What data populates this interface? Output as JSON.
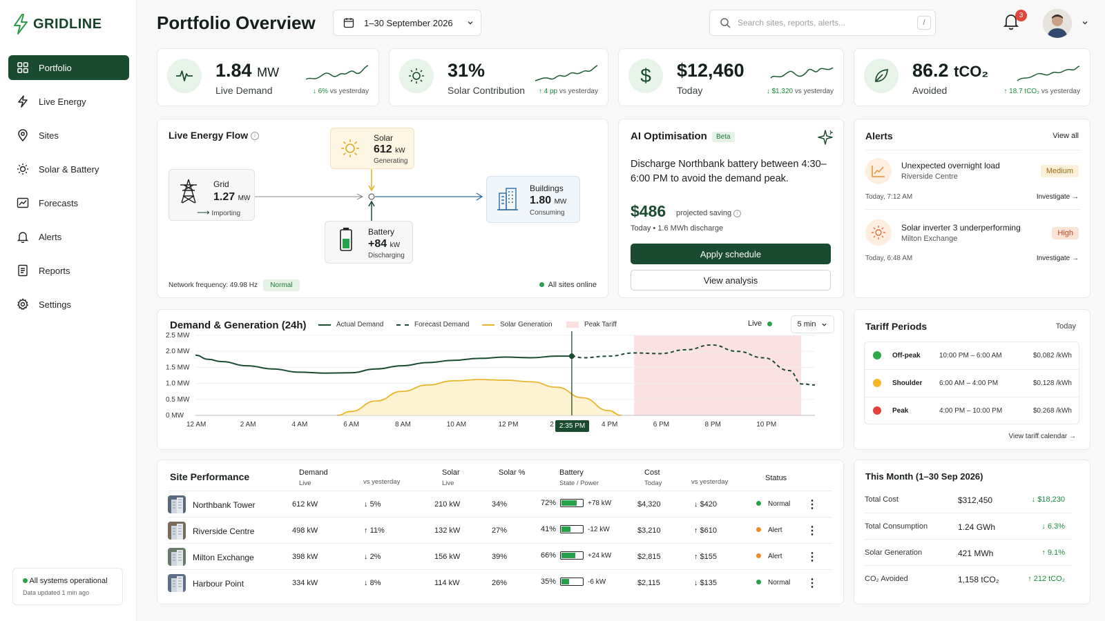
{
  "app": {
    "name": "GRIDLINE"
  },
  "sidebar": {
    "items": [
      {
        "label": "Portfolio",
        "icon": "grid-icon"
      },
      {
        "label": "Live Energy",
        "icon": "bolt-icon"
      },
      {
        "label": "Sites",
        "icon": "pin-icon"
      },
      {
        "label": "Solar & Battery",
        "icon": "sun-icon"
      },
      {
        "label": "Forecasts",
        "icon": "chart-icon"
      },
      {
        "label": "Alerts",
        "icon": "bell-icon"
      },
      {
        "label": "Reports",
        "icon": "document-icon"
      },
      {
        "label": "Settings",
        "icon": "gear-icon"
      }
    ],
    "status": {
      "text": "All systems operational",
      "updated": "Data updated 1 min ago"
    }
  },
  "header": {
    "title": "Portfolio Overview",
    "date_range": "1–30 September 2026",
    "search_placeholder": "Search sites, reports, alerts...",
    "search_shortcut": "/",
    "notifications": "3"
  },
  "kpis": [
    {
      "value": "1.84",
      "unit": "MW",
      "label": "Live Demand",
      "arrow": "↓",
      "delta": "6%",
      "delta_suffix": "vs yesterday"
    },
    {
      "value": "31%",
      "unit": "",
      "label": "Solar Contribution",
      "arrow": "↑",
      "delta": "4 pp",
      "delta_suffix": "vs yesterday"
    },
    {
      "value": "$12,460",
      "unit": "",
      "label": "Today",
      "arrow": "↓",
      "delta": "$1,320",
      "delta_suffix": "vs yesterday"
    },
    {
      "value": "86.2",
      "unit": "tCO₂",
      "label": "Avoided",
      "arrow": "↑",
      "delta": "18.7 tCO₂",
      "delta_suffix": "vs yesterday"
    }
  ],
  "energy_flow": {
    "title": "Live Energy Flow",
    "grid": {
      "title": "Grid",
      "value": "1.27",
      "unit": "MW",
      "status": "Importing"
    },
    "solar": {
      "title": "Solar",
      "value": "612",
      "unit": "kW",
      "status": "Generating"
    },
    "buildings": {
      "title": "Buildings",
      "value": "1.80",
      "unit": "MW",
      "status": "Consuming"
    },
    "battery": {
      "title": "Battery",
      "value": "+84",
      "unit": "kW",
      "status": "Discharging"
    },
    "frequency": "Network frequency: 49.98 Hz",
    "frequency_status": "Normal",
    "sites_status": "All sites online"
  },
  "ai": {
    "title": "AI Optimisation",
    "badge": "Beta",
    "message": "Discharge Northbank battery between 4:30–6:00 PM to avoid the demand peak.",
    "saving": "$486",
    "saving_label": "projected saving",
    "detail": "Today  •  1.6 MWh discharge",
    "apply": "Apply schedule",
    "view": "View analysis"
  },
  "alerts": {
    "title": "Alerts",
    "view_all": "View all",
    "items": [
      {
        "title": "Unexpected overnight load",
        "site": "Riverside Centre",
        "severity": "Medium",
        "time": "Today, 7:12 AM",
        "action": "Investigate →"
      },
      {
        "title": "Solar inverter 3 underperforming",
        "site": "Milton Exchange",
        "severity": "High",
        "time": "Today, 6:48 AM",
        "action": "Investigate →"
      }
    ]
  },
  "chart": {
    "title": "Demand & Generation (24h)",
    "live": "Live",
    "interval": "5 min",
    "cursor_label": "2:35 PM"
  },
  "chart_data": {
    "type": "line",
    "title": "Demand & Generation (24h)",
    "x_ticks": [
      "12 AM",
      "2 AM",
      "4 AM",
      "6 AM",
      "8 AM",
      "10 AM",
      "12 PM",
      "2 PM",
      "4 PM",
      "6 PM",
      "8 PM",
      "10 PM"
    ],
    "y_ticks": [
      "0 MW",
      "0.5 MW",
      "1.0 MW",
      "1.5 MW",
      "2.0 MW",
      "2.5 MW"
    ],
    "ylim": [
      0,
      2.5
    ],
    "xlim": [
      0,
      24
    ],
    "legend": [
      "Actual Demand",
      "Forecast Demand",
      "Solar Generation",
      "Peak Tariff"
    ],
    "peak_band": [
      17,
      24
    ],
    "cursor_hour": 14.58,
    "series": [
      {
        "name": "Actual Demand",
        "color": "#1a4a2f",
        "style": "solid",
        "x": [
          0,
          0.5,
          1,
          2,
          3,
          4,
          5,
          6,
          7,
          8,
          9,
          10,
          11,
          12,
          13,
          14,
          14.58
        ],
        "y": [
          1.88,
          1.75,
          1.68,
          1.55,
          1.45,
          1.35,
          1.32,
          1.33,
          1.45,
          1.55,
          1.65,
          1.72,
          1.78,
          1.82,
          1.8,
          1.85,
          1.85
        ]
      },
      {
        "name": "Forecast Demand",
        "color": "#1a4a2f",
        "style": "dashed",
        "x": [
          14.58,
          15,
          16,
          17,
          18,
          19,
          20,
          21,
          22,
          23,
          23.5,
          24
        ],
        "y": [
          1.85,
          1.8,
          1.85,
          1.95,
          1.93,
          2.05,
          2.2,
          2.0,
          1.8,
          1.4,
          0.98,
          0.95
        ]
      },
      {
        "name": "Solar Generation",
        "color": "#e8b52e",
        "style": "fill",
        "x": [
          5.5,
          6,
          7,
          8,
          9,
          10,
          11,
          12,
          13,
          14,
          15,
          16,
          16.5
        ],
        "y": [
          0,
          0.12,
          0.45,
          0.75,
          0.95,
          1.08,
          1.12,
          1.1,
          1.05,
          0.88,
          0.55,
          0.15,
          0
        ]
      }
    ]
  },
  "tariffs": {
    "title": "Tariff Periods",
    "period": "Today",
    "items": [
      {
        "name": "Off-peak",
        "time": "10:00 PM – 6:00 AM",
        "price": "$0.082 /kWh",
        "color": "#2ea84a"
      },
      {
        "name": "Shoulder",
        "time": "6:00 AM – 4:00 PM",
        "price": "$0.128 /kWh",
        "color": "#f2b72d"
      },
      {
        "name": "Peak",
        "time": "4:00 PM – 10:00 PM",
        "price": "$0.268 /kWh",
        "color": "#e0443a"
      }
    ],
    "link": "View tariff calendar →"
  },
  "sites": {
    "title": "Site Performance",
    "headers": {
      "demand": "Demand",
      "demand_sub": "Live",
      "vs": "vs yesterday",
      "solar": "Solar",
      "solar_sub": "Live",
      "solar_pct": "Solar %",
      "battery": "Battery",
      "battery_sub": "State / Power",
      "cost": "Cost",
      "cost_sub": "Today",
      "cost_vs": "vs yesterday",
      "status": "Status"
    },
    "rows": [
      {
        "name": "Northbank Tower",
        "demand": "612 kW",
        "d_arrow": "↓",
        "d_vs": "5%",
        "solar": "210 kW",
        "solar_pct": "34%",
        "bat_pct": "72%",
        "bat_level": 0.72,
        "bat_pow": "+78 kW",
        "cost": "$4,320",
        "c_arrow": "↓",
        "c_vs": "$420",
        "status": "Normal",
        "status_color": "#27a04a"
      },
      {
        "name": "Riverside Centre",
        "demand": "498 kW",
        "d_arrow": "↑",
        "d_vs": "11%",
        "solar": "132 kW",
        "solar_pct": "27%",
        "bat_pct": "41%",
        "bat_level": 0.41,
        "bat_pow": "-12 kW",
        "cost": "$3,210",
        "c_arrow": "↑",
        "c_vs": "$610",
        "status": "Alert",
        "status_color": "#f08a24"
      },
      {
        "name": "Milton Exchange",
        "demand": "398 kW",
        "d_arrow": "↓",
        "d_vs": "2%",
        "solar": "156 kW",
        "solar_pct": "39%",
        "bat_pct": "66%",
        "bat_level": 0.66,
        "bat_pow": "+24 kW",
        "cost": "$2,815",
        "c_arrow": "↑",
        "c_vs": "$155",
        "status": "Alert",
        "status_color": "#f08a24"
      },
      {
        "name": "Harbour Point",
        "demand": "334 kW",
        "d_arrow": "↓",
        "d_vs": "8%",
        "solar": "114 kW",
        "solar_pct": "26%",
        "bat_pct": "35%",
        "bat_level": 0.35,
        "bat_pow": "-6 kW",
        "cost": "$2,115",
        "c_arrow": "↓",
        "c_vs": "$135",
        "status": "Normal",
        "status_color": "#27a04a"
      }
    ]
  },
  "month": {
    "title": "This Month (1–30 Sep 2026)",
    "rows": [
      {
        "label": "Total Cost",
        "value": "$312,450",
        "arrow": "↓",
        "delta": "$18,230"
      },
      {
        "label": "Total Consumption",
        "value": "1.24 GWh",
        "arrow": "↓",
        "delta": "6.3%"
      },
      {
        "label": "Solar Generation",
        "value": "421 MWh",
        "arrow": "↑",
        "delta": "9.1%"
      },
      {
        "label": "CO₂ Avoided",
        "value": "1,158 tCO₂",
        "arrow": "↑",
        "delta": "212 tCO₂"
      }
    ]
  }
}
